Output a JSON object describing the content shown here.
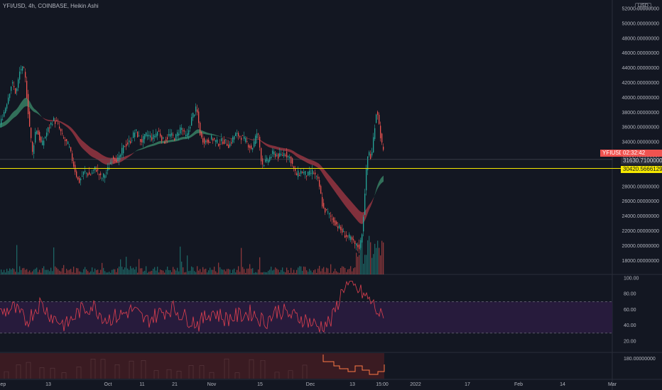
{
  "header": {
    "title": "YFI/USD, 4h, COINBASE, Heikin Ashi",
    "currency": "USD"
  },
  "tags": {
    "symbol": "YFIUSD",
    "countdown": "02:32:42",
    "last_price": "31630.71000000",
    "hline_price": "30420.56661292"
  },
  "colors": {
    "background": "#131722",
    "up": "#26a69a",
    "down": "#ef5350",
    "band_down": "#a83a45",
    "band_up": "#3d8f6e",
    "hline": "#f5e800",
    "rsi_line": "#e04050",
    "rsi_band": "#2a1c3f",
    "lower_fill": "#3a1b22",
    "lower_line": "#ff7a45"
  },
  "chart_data": [
    {
      "type": "candlestick",
      "title": "YFI/USD, 4h, COINBASE, Heikin Ashi",
      "y_ticks": [
        "52000.00000000",
        "50000.00000000",
        "48000.00000000",
        "46000.00000000",
        "44000.00000000",
        "42000.00000000",
        "40000.00000000",
        "38000.00000000",
        "36000.00000000",
        "34000.00000000",
        "32000.00000000",
        "28000.00000000",
        "26000.00000000",
        "24000.00000000",
        "22000.00000000",
        "20000.00000000",
        "18000.00000000"
      ],
      "ylim": [
        16000,
        52500
      ],
      "x_ticks": [
        "Sep",
        "13",
        "Oct",
        "11",
        "21",
        "Nov",
        "15",
        "Dec",
        "13",
        "15:00",
        "2022",
        "17",
        "Feb",
        "14",
        "Mar"
      ],
      "price_path_approx": [
        {
          "x": "Sep 1",
          "y": 36500
        },
        {
          "x": "Sep 6",
          "y": 43500
        },
        {
          "x": "Sep 8",
          "y": 36000
        },
        {
          "x": "Sep 13",
          "y": 36500
        },
        {
          "x": "Sep 20",
          "y": 29500
        },
        {
          "x": "Sep 28",
          "y": 29000
        },
        {
          "x": "Oct 4",
          "y": 31000
        },
        {
          "x": "Oct 8",
          "y": 35500
        },
        {
          "x": "Oct 20",
          "y": 34500
        },
        {
          "x": "Oct 24",
          "y": 38500
        },
        {
          "x": "Oct 26",
          "y": 34500
        },
        {
          "x": "Nov 10",
          "y": 34800
        },
        {
          "x": "Nov 16",
          "y": 31500
        },
        {
          "x": "Nov 26",
          "y": 32000
        },
        {
          "x": "Dec 1",
          "y": 29500
        },
        {
          "x": "Dec 4",
          "y": 24500
        },
        {
          "x": "Dec 10",
          "y": 20500
        },
        {
          "x": "Dec 14",
          "y": 19800
        },
        {
          "x": "Dec 16",
          "y": 31500
        },
        {
          "x": "Dec 18",
          "y": 38700
        },
        {
          "x": "Dec 19",
          "y": 31630.71
        }
      ],
      "horizontal_line": 30420.56661292,
      "last_price": 31630.71
    },
    {
      "type": "line",
      "ylim": [
        10,
        100
      ],
      "y_ticks": [
        "100.00",
        "80.00",
        "60.00",
        "40.00",
        "20.00"
      ],
      "band": [
        30,
        70
      ],
      "series": [
        {
          "values": [
            55,
            62,
            45,
            68,
            50,
            40,
            58,
            65,
            48,
            52,
            60,
            45,
            55,
            62,
            50,
            42,
            58,
            48,
            52,
            56,
            44,
            60,
            52,
            48,
            38,
            45,
            92,
            85,
            70,
            45
          ]
        }
      ]
    },
    {
      "type": "line",
      "y_ticks": [
        "180.00000000"
      ]
    }
  ]
}
